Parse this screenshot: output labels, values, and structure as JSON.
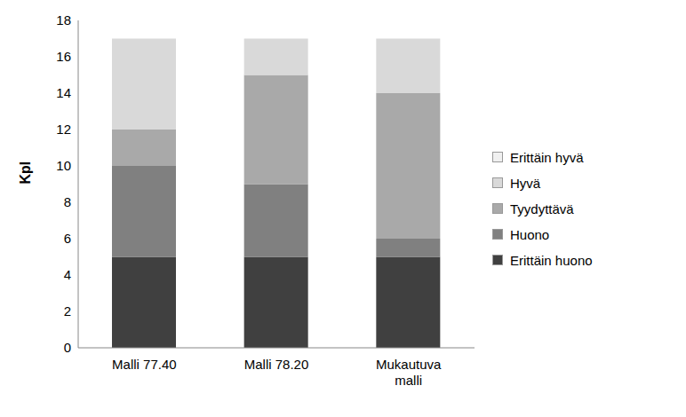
{
  "chart_data": {
    "type": "bar",
    "stacked": true,
    "y_label": "Kpl",
    "categories": [
      "Malli 77.40",
      "Malli 78.20",
      "Mukautuva malli"
    ],
    "series": [
      {
        "name": "Erittäin huono",
        "color": "#404040",
        "values": [
          5,
          5,
          5
        ]
      },
      {
        "name": "Huono",
        "color": "#808080",
        "values": [
          5,
          4,
          1
        ]
      },
      {
        "name": "Tyydyttävä",
        "color": "#a9a9a9",
        "values": [
          2,
          6,
          8
        ]
      },
      {
        "name": "Hyvä",
        "color": "#d9d9d9",
        "values": [
          5,
          2,
          3
        ]
      },
      {
        "name": "Erittäin hyvä",
        "color": "#f0f0f0",
        "values": [
          0,
          0,
          0
        ]
      }
    ],
    "ylim": [
      0,
      18
    ],
    "yticks": [
      0,
      2,
      4,
      6,
      8,
      10,
      12,
      14,
      16,
      18
    ],
    "legend": "right",
    "grid": false
  }
}
